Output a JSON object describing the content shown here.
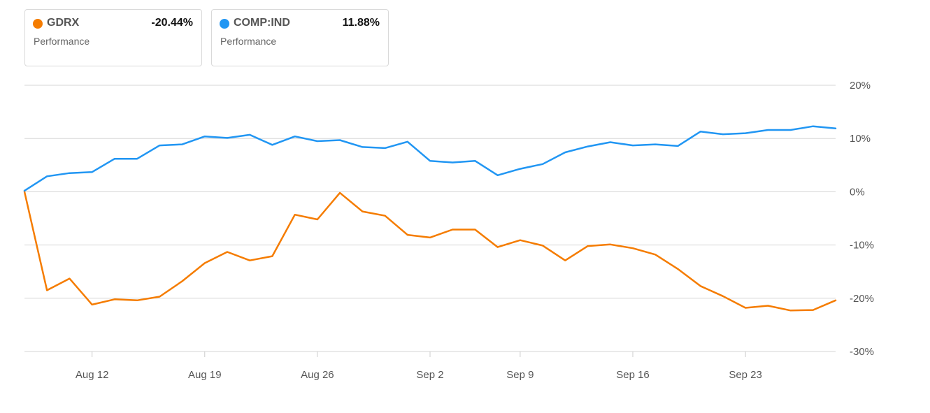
{
  "legend": [
    {
      "symbol": "GDRX",
      "value": "-20.44%",
      "sub": "Performance",
      "color": "#f57c00"
    },
    {
      "symbol": "COMP:IND",
      "value": "11.88%",
      "sub": "Performance",
      "color": "#2196f3"
    }
  ],
  "chart_data": {
    "type": "line",
    "title": "",
    "xlabel": "",
    "ylabel": "",
    "ylim": [
      -30,
      20
    ],
    "y_ticks": [
      20,
      10,
      0,
      -10,
      -20,
      -30
    ],
    "y_tick_labels": [
      "20%",
      "10%",
      "0%",
      "-10%",
      "-20%",
      "-30%"
    ],
    "x_tick_labels": [
      "Aug 12",
      "Aug 19",
      "Aug 26",
      "Sep 2",
      "Sep 9",
      "Sep 16",
      "Sep 23"
    ],
    "x_tick_index": [
      3,
      8,
      13,
      18,
      22,
      27,
      32
    ],
    "grid": true,
    "legend_position": "top-left",
    "series": [
      {
        "name": "GDRX",
        "color": "#f57c00",
        "values": [
          0,
          -18.5,
          -16.3,
          -21.2,
          -20.2,
          -20.4,
          -19.7,
          -16.8,
          -13.4,
          -11.3,
          -12.9,
          -12.1,
          -4.3,
          -5.2,
          -0.2,
          -3.7,
          -4.5,
          -8.1,
          -8.6,
          -7.1,
          -7.1,
          -10.4,
          -9.1,
          -10.1,
          -12.9,
          -10.2,
          -9.9,
          -10.6,
          -11.8,
          -14.5,
          -17.7,
          -19.6,
          -21.8,
          -21.4,
          -22.3,
          -22.2,
          -20.4
        ]
      },
      {
        "name": "COMP:IND",
        "color": "#2196f3",
        "values": [
          0.2,
          2.9,
          3.5,
          3.7,
          6.2,
          6.2,
          8.7,
          8.9,
          10.4,
          10.1,
          10.7,
          8.8,
          10.4,
          9.5,
          9.7,
          8.4,
          8.2,
          9.4,
          5.8,
          5.5,
          5.8,
          3.1,
          4.3,
          5.2,
          7.4,
          8.5,
          9.3,
          8.7,
          8.9,
          8.6,
          11.3,
          10.8,
          11.0,
          11.6,
          11.6,
          12.3,
          11.9
        ]
      }
    ]
  }
}
